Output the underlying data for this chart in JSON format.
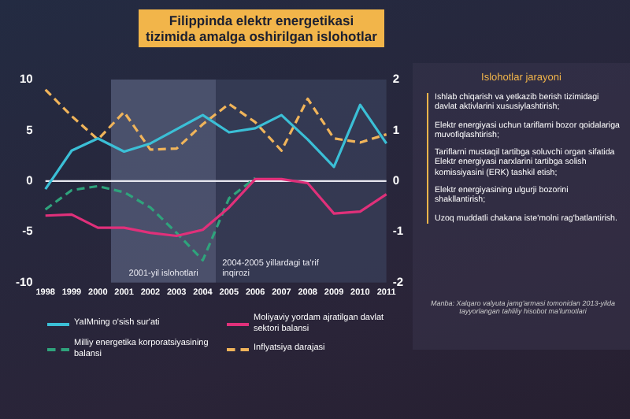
{
  "chart_data": {
    "type": "line",
    "title": "Filippinda elektr energetikasi tizimida amalga oshirilgan islohotlar",
    "categories": [
      "1998",
      "1999",
      "2000",
      "2001",
      "2002",
      "2003",
      "2004",
      "2005",
      "2006",
      "2007",
      "2008",
      "2009",
      "2010",
      "2011"
    ],
    "series": [
      {
        "name": "YaIMning o'sish sur'ati",
        "color": "#3bbfd6",
        "line_style": "solid",
        "values": [
          -0.8,
          3.0,
          4.2,
          2.9,
          3.7,
          5.1,
          6.5,
          4.8,
          5.2,
          6.5,
          4.1,
          1.4,
          7.5,
          3.7
        ]
      },
      {
        "name": "Moliyaviy yordam ajratilgan davlat sektori balansi",
        "color": "#e0307a",
        "line_style": "solid",
        "values": [
          -3.4,
          -3.3,
          -4.6,
          -4.6,
          -5.1,
          -5.4,
          -4.8,
          -2.6,
          0.2,
          0.2,
          -0.2,
          -3.2,
          -3.0,
          -1.3
        ]
      },
      {
        "name": "Milliy energetika korporatsiyasining balansi",
        "color": "#2fa37c",
        "line_style": "dashed",
        "values": [
          -2.8,
          -0.9,
          -0.5,
          -1.1,
          -2.6,
          -5.1,
          -7.8,
          -1.7,
          0.3,
          null,
          null,
          null,
          null,
          null
        ]
      },
      {
        "name": "Inflyatsiya darajasi",
        "color": "#f0b45a",
        "line_style": "dashed",
        "values": [
          9.0,
          6.4,
          4.1,
          6.8,
          3.1,
          3.2,
          5.6,
          7.6,
          5.8,
          3.0,
          8.1,
          4.2,
          3.8,
          4.6
        ]
      }
    ],
    "ylim": [
      -10,
      10
    ],
    "yticks": [
      -10,
      -5,
      0,
      5,
      10
    ],
    "y2lim": [
      -2,
      2
    ],
    "y2ticks": [
      -2,
      -1,
      0,
      1,
      2
    ],
    "bands": [
      {
        "axis": "x",
        "from": "2001",
        "to": "2004",
        "label": "2001-yil islohotlari",
        "color": "#5a6280"
      },
      {
        "axis": "x",
        "from": "2005",
        "to": "2011",
        "label": "2004-2005 yillardagi ta'rif inqirozi",
        "color": "#3a415c"
      }
    ],
    "annotations": [
      "Islohotlar jarayoni",
      "Ishlab chiqarish va yetkazib berish tizimidagi davlat aktivlarini xususiylashtirish;",
      "Elektr energiyasi uchun tariflarni bozor qoidalariga muvofiqlashtirish;",
      "Tariflarni mustaqil tartibga soluvchi organ sifatida Elektr energiyasi narxlarini tartibga solish komissiyasini (ERK) tashkil etish;",
      "Elektr energiyasining ulgurji bozorini shakllantirish;",
      "Uzoq muddatli chakana iste'molni rag'batlantirish.",
      "Manba: Xalqaro valyuta jamg'armasi tomonidan 2013-yilda tayyorlangan tahliliy hisobot ma'lumotlari"
    ],
    "ref_lines": [
      {
        "axis": "y",
        "value": 0,
        "color": "#e6e6ee",
        "line_style": "solid"
      }
    ],
    "grid": false,
    "legend": "bottom",
    "marker": "none"
  }
}
